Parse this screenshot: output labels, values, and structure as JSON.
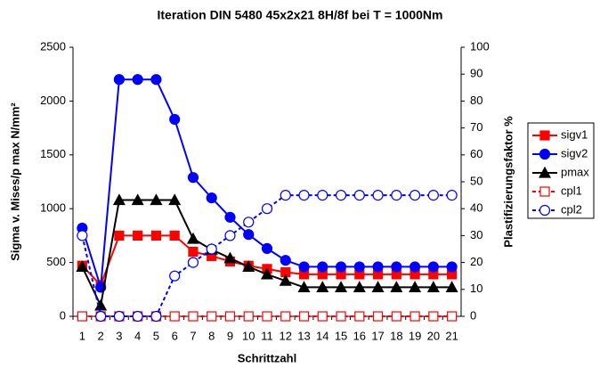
{
  "chart_data": {
    "type": "line",
    "title": "Iteration DIN 5480 45x2x21 8H/8f bei T = 1000Nm",
    "x_label": "Schrittzahl",
    "y_label": "Sigma v. Mises/p max  N/mm²",
    "y2_label": "Plastifizierungsfaktor %",
    "categories": [
      "1",
      "2",
      "3",
      "4",
      "5",
      "6",
      "7",
      "8",
      "9",
      "10",
      "11",
      "12",
      "13",
      "14",
      "15",
      "16",
      "17",
      "18",
      "19",
      "20",
      "21"
    ],
    "ylim": [
      0,
      2500
    ],
    "yticks": [
      0,
      500,
      1000,
      1500,
      2000,
      2500
    ],
    "y2lim": [
      0,
      100
    ],
    "y2ticks": [
      0,
      10,
      20,
      30,
      40,
      50,
      60,
      70,
      80,
      90,
      100
    ],
    "legend": "right",
    "series": [
      {
        "name": "sigv1",
        "color": "#ff0000",
        "marker": "square",
        "filled": true,
        "dashed": false,
        "values": [
          470,
          290,
          750,
          750,
          750,
          750,
          600,
          560,
          510,
          470,
          440,
          410,
          390,
          390,
          390,
          390,
          390,
          390,
          390,
          390,
          390
        ]
      },
      {
        "name": "sigv2",
        "color": "#0000ff",
        "marker": "circle",
        "filled": true,
        "dashed": false,
        "values": [
          820,
          270,
          2200,
          2200,
          2200,
          1830,
          1290,
          1100,
          920,
          760,
          630,
          520,
          460,
          460,
          460,
          460,
          460,
          460,
          460,
          460,
          460
        ]
      },
      {
        "name": "pmax",
        "color": "#000000",
        "marker": "triangle",
        "filled": true,
        "dashed": false,
        "values": [
          460,
          100,
          1080,
          1080,
          1080,
          1080,
          720,
          620,
          540,
          460,
          390,
          330,
          270,
          270,
          270,
          270,
          270,
          270,
          270,
          270,
          270
        ]
      },
      {
        "name": "cpl1",
        "color": "#ff0000",
        "marker": "square",
        "filled": false,
        "dashed": true,
        "axis": "y2",
        "values": [
          0,
          0,
          0,
          0,
          0,
          0,
          0,
          0,
          0,
          0,
          0,
          0,
          0,
          0,
          0,
          0,
          0,
          0,
          0,
          0,
          0
        ]
      },
      {
        "name": "cpl2",
        "color": "#0000ff",
        "marker": "circle",
        "filled": false,
        "dashed": true,
        "axis": "y2",
        "values": [
          30,
          0,
          0,
          0,
          0,
          15,
          20,
          25,
          30,
          35,
          40,
          45,
          45,
          45,
          45,
          45,
          45,
          45,
          45,
          45,
          45
        ]
      }
    ]
  }
}
